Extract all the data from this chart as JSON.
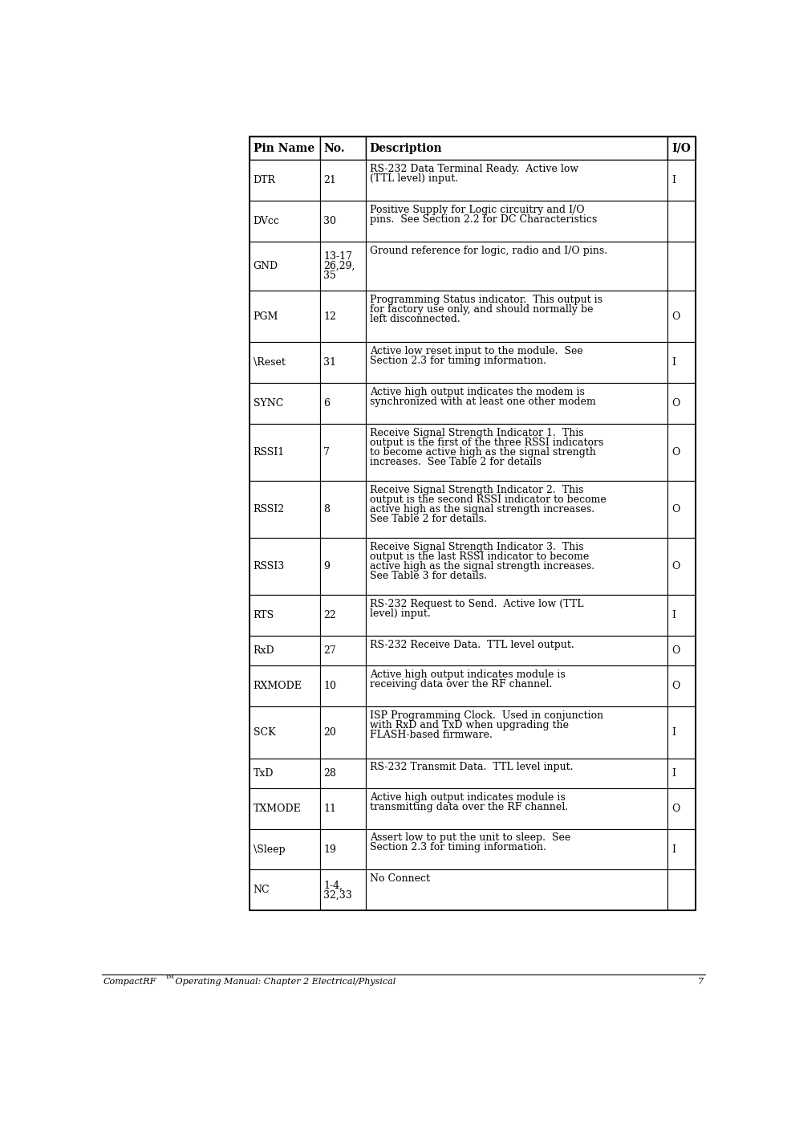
{
  "footer_left": "CompactRF",
  "footer_tm": "TM",
  "footer_right": " Operating Manual: Chapter 2 Electrical/Physical",
  "footer_page": "7",
  "col_headers": [
    "Pin Name",
    "No.",
    "Description",
    "I/O"
  ],
  "rows": [
    {
      "pin": "DTR",
      "no": "21",
      "desc": "RS-232 Data Terminal Ready.  Active low\n(TTL level) input.",
      "io": "I"
    },
    {
      "pin": "DVcc",
      "no": "30",
      "desc": "Positive Supply for Logic circuitry and I/O\npins.  See Section 2.2 for DC Characteristics",
      "io": ""
    },
    {
      "pin": "GND",
      "no": "13-17\n26,29,\n35",
      "desc": "Ground reference for logic, radio and I/O pins.",
      "io": ""
    },
    {
      "pin": "PGM",
      "no": "12",
      "desc": "Programming Status indicator.  This output is\nfor factory use only, and should normally be\nleft disconnected.",
      "io": "O"
    },
    {
      "pin": "\\Reset",
      "no": "31",
      "desc": "Active low reset input to the module.  See\nSection 2.3 for timing information.",
      "io": "I"
    },
    {
      "pin": "SYNC",
      "no": "6",
      "desc": "Active high output indicates the modem is\nsynchronized with at least one other modem",
      "io": "O"
    },
    {
      "pin": "RSSI1",
      "no": "7",
      "desc": "Receive Signal Strength Indicator 1.  This\noutput is the first of the three RSSI indicators\nto become active high as the signal strength\nincreases.  See Table 2 for details",
      "io": "O"
    },
    {
      "pin": "RSSI2",
      "no": "8",
      "desc": "Receive Signal Strength Indicator 2.  This\noutput is the second RSSI indicator to become\nactive high as the signal strength increases.\nSee Table 2 for details.",
      "io": "O"
    },
    {
      "pin": "RSSI3",
      "no": "9",
      "desc": "Receive Signal Strength Indicator 3.  This\noutput is the last RSSI indicator to become\nactive high as the signal strength increases.\nSee Table 3 for details.",
      "io": "O"
    },
    {
      "pin": "RTS",
      "no": "22",
      "desc": "RS-232 Request to Send.  Active low (TTL\nlevel) input.",
      "io": "I"
    },
    {
      "pin": "RxD",
      "no": "27",
      "desc": "RS-232 Receive Data.  TTL level output.",
      "io": "O"
    },
    {
      "pin": "RXMODE",
      "no": "10",
      "desc": "Active high output indicates module is\nreceiving data over the RF channel.",
      "io": "O"
    },
    {
      "pin": "SCK",
      "no": "20",
      "desc": "ISP Programming Clock.  Used in conjunction\nwith RxD and TxD when upgrading the\nFLASH-based firmware.",
      "io": "I"
    },
    {
      "pin": "TxD",
      "no": "28",
      "desc": "RS-232 Transmit Data.  TTL level input.",
      "io": "I"
    },
    {
      "pin": "TXMODE",
      "no": "11",
      "desc": "Active high output indicates module is\ntransmitting data over the RF channel.",
      "io": "O"
    },
    {
      "pin": "\\Sleep",
      "no": "19",
      "desc": "Assert low to put the unit to sleep.  See\nSection 2.3 for timing information.",
      "io": "I"
    },
    {
      "pin": "NC",
      "no": "1-4,\n32,33",
      "desc": "No Connect",
      "io": ""
    }
  ],
  "bg_color": "#ffffff",
  "text_color": "#000000",
  "border_color": "#000000",
  "header_font_size": 10.0,
  "cell_font_size": 9.0,
  "footer_font_size": 8.0
}
